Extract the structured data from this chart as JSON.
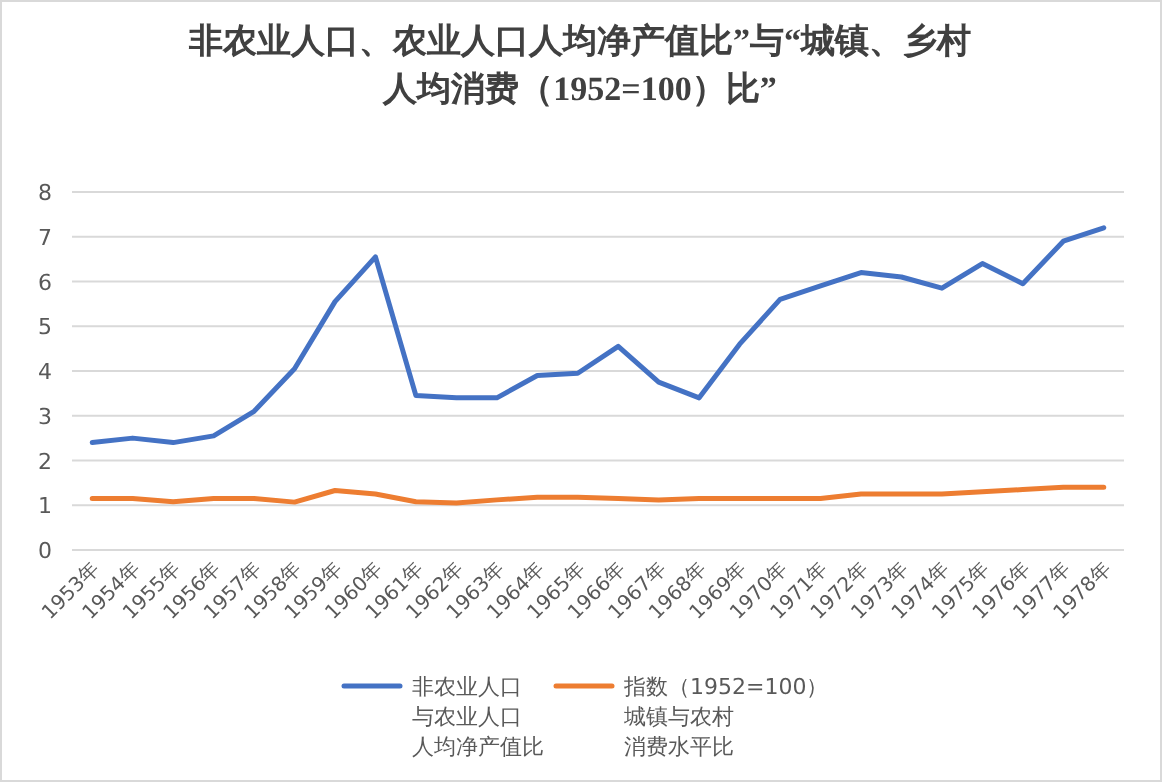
{
  "chart_data": {
    "type": "line",
    "title": "非农业人口、农业人口人均净产值比”与“城镇、乡村人均消费（1952=100）比”",
    "categories": [
      "1953年",
      "1954年",
      "1955年",
      "1956年",
      "1957年",
      "1958年",
      "1959年",
      "1960年",
      "1961年",
      "1962年",
      "1963年",
      "1964年",
      "1965年",
      "1966年",
      "1967年",
      "1968年",
      "1969年",
      "1970年",
      "1971年",
      "1972年",
      "1973年",
      "1974年",
      "1975年",
      "1976年",
      "1977年",
      "1978年"
    ],
    "series": [
      {
        "name": "非农业人口与农业人口人均净产值比",
        "color": "#4472c4",
        "values": [
          2.4,
          2.5,
          2.4,
          2.55,
          3.1,
          4.05,
          5.55,
          6.55,
          3.45,
          3.4,
          3.4,
          3.9,
          3.95,
          4.55,
          3.75,
          3.4,
          4.6,
          5.6,
          5.9,
          6.2,
          6.1,
          5.85,
          6.4,
          5.95,
          6.9,
          7.2
        ]
      },
      {
        "name": "指数（1952=100）城镇与农村消费水平比",
        "color": "#ed7d31",
        "values": [
          1.15,
          1.15,
          1.08,
          1.15,
          1.15,
          1.07,
          1.33,
          1.25,
          1.08,
          1.05,
          1.12,
          1.18,
          1.18,
          1.15,
          1.12,
          1.15,
          1.15,
          1.15,
          1.15,
          1.25,
          1.25,
          1.25,
          1.3,
          1.35,
          1.4,
          1.4
        ]
      }
    ],
    "ylim": [
      0,
      8
    ],
    "yticks": [
      0,
      1,
      2,
      3,
      4,
      5,
      6,
      7,
      8
    ],
    "grid": "y",
    "legend": "bottom",
    "marker": "none",
    "line_style": "solid"
  }
}
